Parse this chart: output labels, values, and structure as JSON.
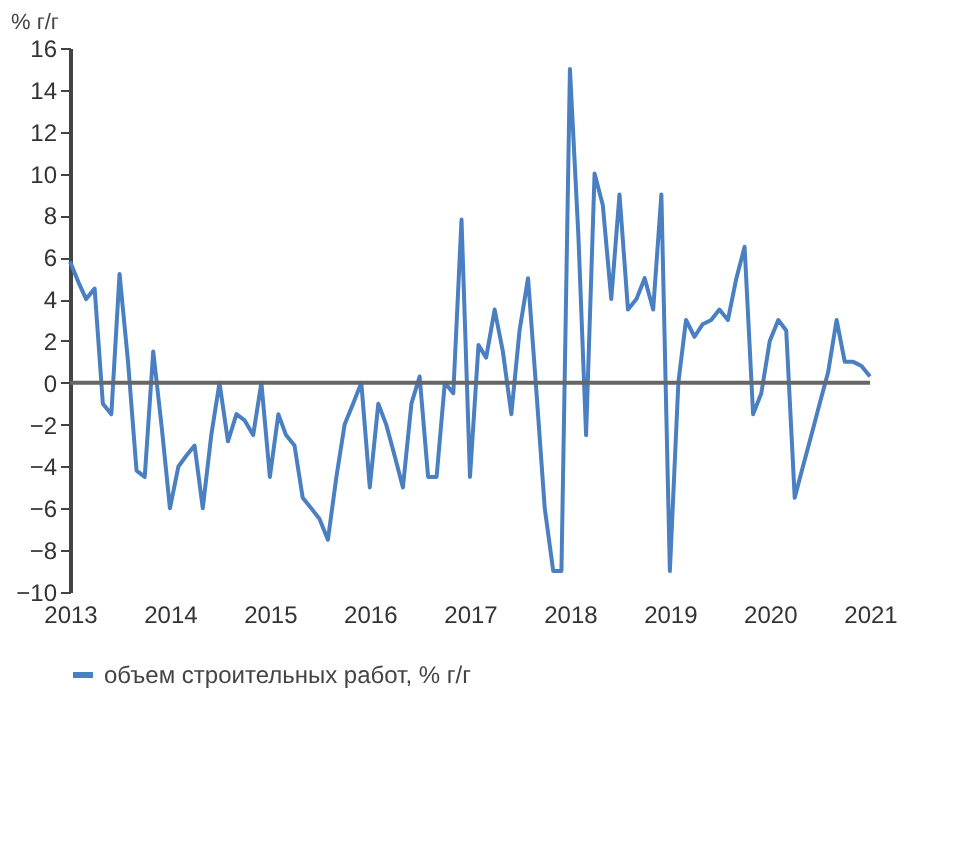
{
  "chart_data": {
    "type": "line",
    "ylabel": "% г/г",
    "x": [
      "2013-01",
      "2013-02",
      "2013-03",
      "2013-04",
      "2013-05",
      "2013-06",
      "2013-07",
      "2013-08",
      "2013-09",
      "2013-10",
      "2013-11",
      "2013-12",
      "2014-01",
      "2014-02",
      "2014-03",
      "2014-04",
      "2014-05",
      "2014-06",
      "2014-07",
      "2014-08",
      "2014-09",
      "2014-10",
      "2014-11",
      "2014-12",
      "2015-01",
      "2015-02",
      "2015-03",
      "2015-04",
      "2015-05",
      "2015-06",
      "2015-07",
      "2015-08",
      "2015-09",
      "2015-10",
      "2015-11",
      "2015-12",
      "2016-01",
      "2016-02",
      "2016-03",
      "2016-04",
      "2016-05",
      "2016-06",
      "2016-07",
      "2016-08",
      "2016-09",
      "2016-10",
      "2016-11",
      "2016-12",
      "2017-01",
      "2017-02",
      "2017-03",
      "2017-04",
      "2017-05",
      "2017-06",
      "2017-07",
      "2017-08",
      "2017-09",
      "2017-10",
      "2017-11",
      "2017-12",
      "2018-01",
      "2018-02",
      "2018-03",
      "2018-04",
      "2018-05",
      "2018-06",
      "2018-07",
      "2018-08",
      "2018-09",
      "2018-10",
      "2018-11",
      "2018-12",
      "2019-01",
      "2019-02",
      "2019-03",
      "2019-04",
      "2019-05",
      "2019-06",
      "2019-07",
      "2019-08",
      "2019-09",
      "2019-10",
      "2019-11",
      "2019-12",
      "2020-01",
      "2020-02",
      "2020-03",
      "2020-04",
      "2020-05",
      "2020-06",
      "2020-07",
      "2020-08",
      "2020-09",
      "2020-10",
      "2020-11",
      "2020-12",
      "2021-01"
    ],
    "series": [
      {
        "name": "объем строительных работ, % г/г",
        "color": "#4a7fc1",
        "values": [
          5.8,
          4.8,
          4.0,
          4.5,
          -1.0,
          -1.5,
          5.2,
          1,
          -4.2,
          -4.5,
          1.5,
          -2,
          -6,
          -4,
          -3.5,
          -3,
          -6,
          -2.5,
          0,
          -2.8,
          -1.5,
          -1.8,
          -2.5,
          0,
          -4.5,
          -1.5,
          -2.5,
          -3,
          -5.5,
          -6,
          -6.5,
          -7.5,
          -4.5,
          -2,
          -1,
          0,
          -5,
          -1,
          -2,
          -3.5,
          -5,
          -1,
          0.3,
          -4.5,
          -4.5,
          0,
          -0.5,
          7.8,
          -4.5,
          1.8,
          1.2,
          3.5,
          1.5,
          -1.5,
          2.5,
          5,
          -0.5,
          -6,
          -9,
          -9,
          15,
          7,
          -2.5,
          10,
          8.5,
          4,
          9,
          3.5,
          4,
          5,
          3.5,
          9,
          -9,
          0,
          3,
          2.2,
          2.8,
          3,
          3.5,
          3,
          5,
          6.5,
          -1.5,
          -0.5,
          2,
          3,
          2.5,
          -5.5,
          -4,
          -2.5,
          -1,
          0.5,
          3,
          1,
          1,
          0.8,
          0.3
        ]
      }
    ],
    "xlim": [
      "2013-01",
      "2021-01"
    ],
    "xticks": [
      {
        "value": "2013-01",
        "label": "2013"
      },
      {
        "value": "2014-01",
        "label": "2014"
      },
      {
        "value": "2015-01",
        "label": "2015"
      },
      {
        "value": "2016-01",
        "label": "2016"
      },
      {
        "value": "2017-01",
        "label": "2017"
      },
      {
        "value": "2018-01",
        "label": "2018"
      },
      {
        "value": "2019-01",
        "label": "2019"
      },
      {
        "value": "2020-01",
        "label": "2020"
      },
      {
        "value": "2021-01",
        "label": "2021"
      }
    ],
    "ylim": [
      -10,
      16
    ],
    "yticks": [
      -10,
      -8,
      -6,
      -4,
      -2,
      0,
      2,
      4,
      6,
      8,
      10,
      12,
      14,
      16
    ],
    "ref_lines": [
      {
        "axis": "y",
        "value": 0,
        "color": "#666666"
      }
    ],
    "grid": false,
    "legend": "bottom"
  }
}
